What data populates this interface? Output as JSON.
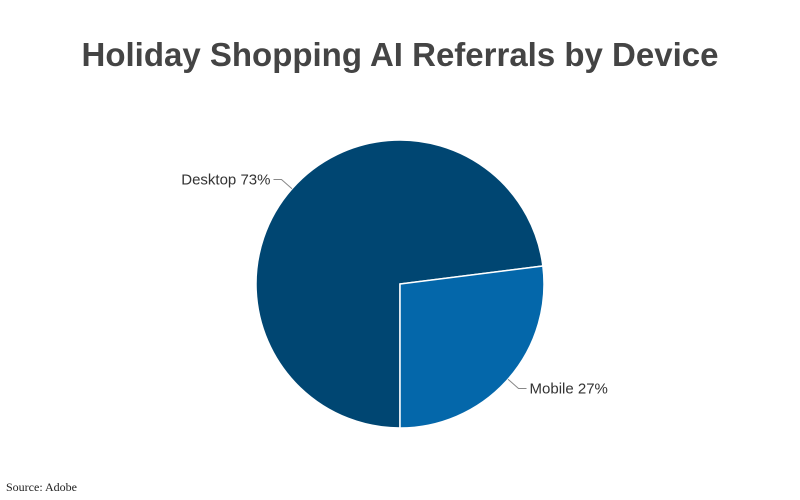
{
  "chart_data": {
    "type": "pie",
    "title": "Holiday Shopping AI Referrals by Device",
    "categories": [
      "Desktop",
      "Mobile"
    ],
    "values": [
      73,
      27
    ],
    "labels": [
      "Desktop 73%",
      "Mobile 27%"
    ],
    "colors": [
      "#004672",
      "#0467AA"
    ],
    "legend": "none"
  },
  "source": "Source: Adobe"
}
